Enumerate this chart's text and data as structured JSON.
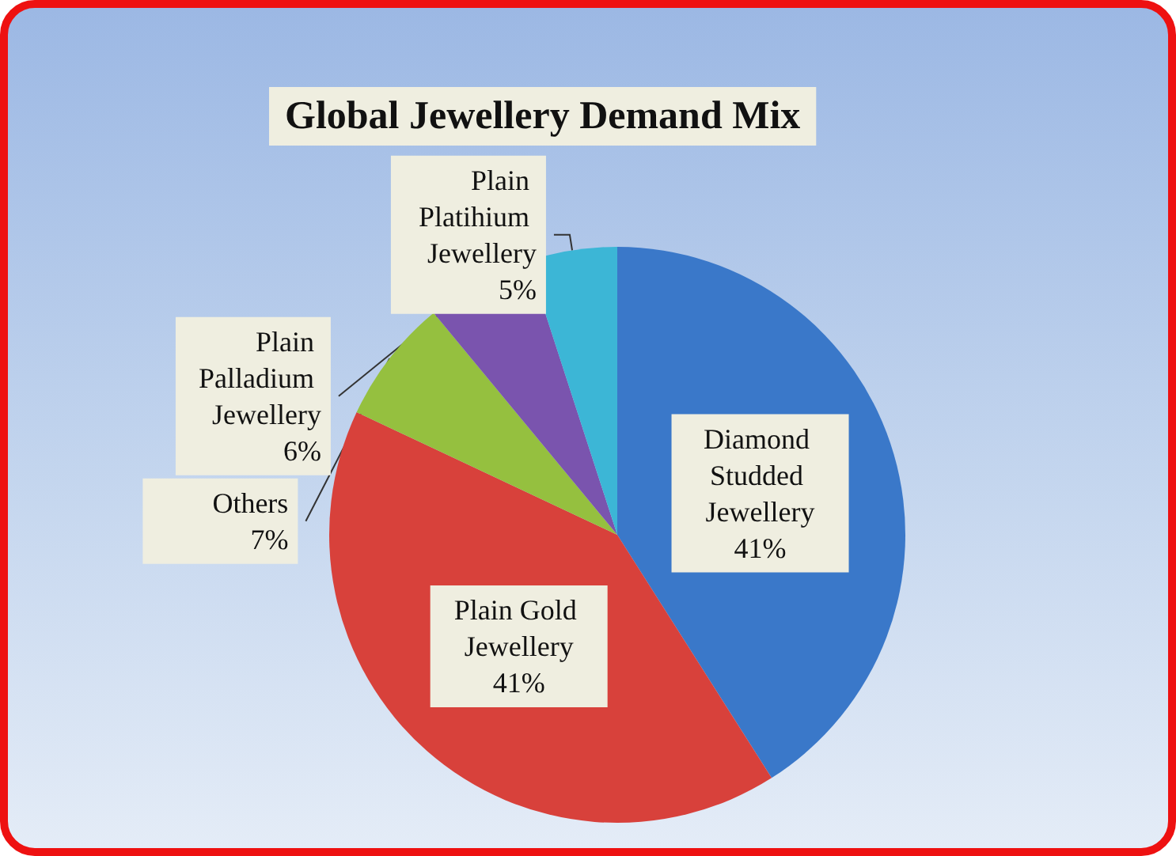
{
  "chart_data": {
    "type": "pie",
    "title": "Global Jewellery Demand Mix",
    "categories": [
      "Diamond Studded Jewellery",
      "Plain Gold Jewellery",
      "Others",
      "Plain Palladium Jewellery",
      "Plain Platihium Jewellery"
    ],
    "values": [
      41,
      41,
      7,
      6,
      5
    ],
    "value_labels": [
      "41%",
      "41%",
      "7%",
      "6%",
      "5%"
    ],
    "colors": [
      "#3a78c9",
      "#d8413b",
      "#95c03f",
      "#7a54ae",
      "#3cb6d6"
    ]
  }
}
